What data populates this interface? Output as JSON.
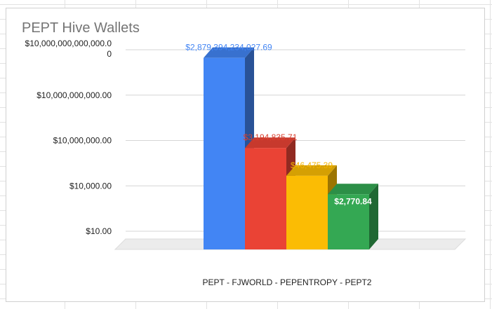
{
  "chart_data": {
    "type": "bar",
    "title": "PEPT Hive Wallets",
    "xlabel": "",
    "ylabel": "",
    "y_scale": "log",
    "ylim": [
      10,
      10000000000000
    ],
    "y_ticks": [
      {
        "value": 10,
        "label": "$10.00"
      },
      {
        "value": 10000,
        "label": "$10,000.00"
      },
      {
        "value": 10000000,
        "label": "$10,000,000.00"
      },
      {
        "value": 10000000000,
        "label": "$10,000,000,000.00"
      },
      {
        "value": 10000000000000,
        "label_line1": "$10,000,000,000,000.0",
        "label_line2": "0"
      }
    ],
    "categories": [
      "PEPT - FJWORLD - PEPENTROPY - PEPT2"
    ],
    "series": [
      {
        "value": 2879394234027.69,
        "label": "$2,879,394,234,027.69",
        "color": "#4285f4",
        "label_color": "#4285f4"
      },
      {
        "value": 3194835.71,
        "label": "$3,194,835.71",
        "color": "#ea4335",
        "label_color": "#d9402f"
      },
      {
        "value": 46475.39,
        "label": "$46,475.39",
        "color": "#fbbc04",
        "label_color": "#f4b400"
      },
      {
        "value": 2770.84,
        "label": "$2,770.84",
        "color": "#34a853",
        "label_color": "#ffffff"
      }
    ],
    "grid": true,
    "legend": "none",
    "style": "3d"
  }
}
